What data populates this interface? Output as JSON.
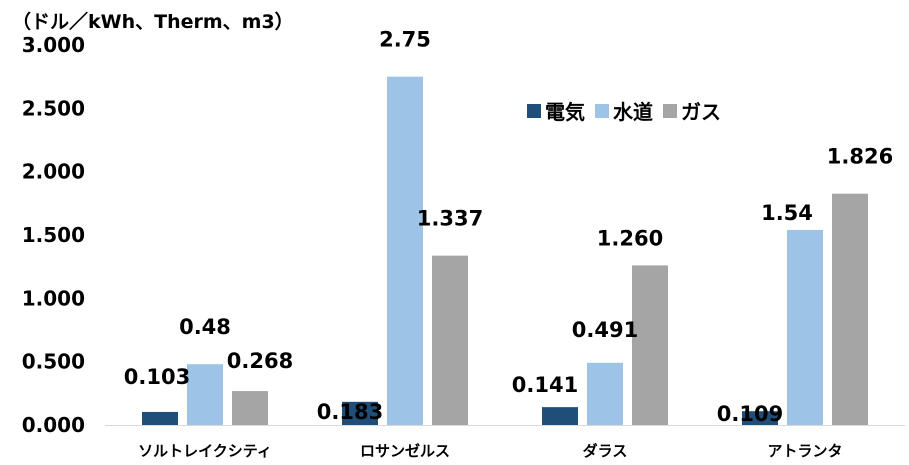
{
  "chart_data": {
    "type": "bar",
    "unit_label": "（ドル／kWh、Therm、m3）",
    "categories": [
      "ソルトレイクシティ",
      "ロサンゼルス",
      "ダラス",
      "アトランタ"
    ],
    "series": [
      {
        "name": "電気",
        "color": "#1f4e79",
        "values": [
          0.103,
          0.183,
          0.141,
          0.109
        ],
        "labels": [
          "0.103",
          "0.183",
          "0.141",
          "0.109"
        ]
      },
      {
        "name": "水道",
        "color": "#9dc3e6",
        "values": [
          0.48,
          2.75,
          0.491,
          1.54
        ],
        "labels": [
          "0.48",
          "2.75",
          "0.491",
          "1.54"
        ]
      },
      {
        "name": "ガス",
        "color": "#a5a5a5",
        "values": [
          0.268,
          1.337,
          1.26,
          1.826
        ],
        "labels": [
          "0.268",
          "1.337",
          "1.260",
          "1.826"
        ]
      }
    ],
    "ylim": [
      0,
      3.0
    ],
    "yticks": [
      {
        "value": 0.0,
        "label": "0.000"
      },
      {
        "value": 0.5,
        "label": "0.500"
      },
      {
        "value": 1.0,
        "label": "1.000"
      },
      {
        "value": 1.5,
        "label": "1.500"
      },
      {
        "value": 2.0,
        "label": "2.000"
      },
      {
        "value": 2.5,
        "label": "2.500"
      },
      {
        "value": 3.0,
        "label": "3.000"
      }
    ],
    "grid": false,
    "legend_position": "top-right"
  }
}
